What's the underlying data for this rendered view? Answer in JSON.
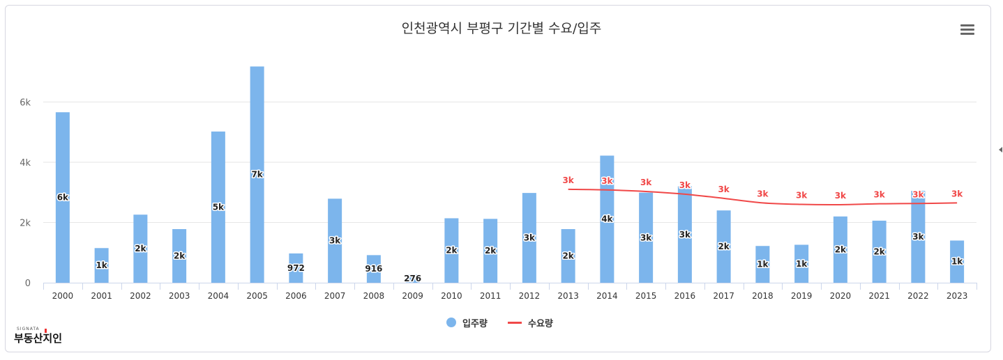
{
  "title": "인천광역시 부평구 기간별 수요/입주",
  "menu_icon": "hamburger-menu-icon",
  "logo": {
    "small_text": "SIGNATA",
    "text": "부동산지인",
    "icon": "budongsan-jiin-logo"
  },
  "legend": [
    {
      "label": "입주량",
      "color": "#7cb5ec",
      "shape": "circle"
    },
    {
      "label": "수요량",
      "color": "#f04848",
      "shape": "line"
    }
  ],
  "chart_data": {
    "type": "bar",
    "title": "인천광역시 부평구 기간별 수요/입주",
    "categories": [
      "2000",
      "2001",
      "2002",
      "2003",
      "2004",
      "2005",
      "2006",
      "2007",
      "2008",
      "2009",
      "2010",
      "2011",
      "2012",
      "2013",
      "2014",
      "2015",
      "2016",
      "2017",
      "2018",
      "2019",
      "2020",
      "2021",
      "2022",
      "2023"
    ],
    "y_ticks": [
      {
        "value": 0,
        "label": "0"
      },
      {
        "value": 2000,
        "label": "2k"
      },
      {
        "value": 4000,
        "label": "4k"
      },
      {
        "value": 6000,
        "label": "6k"
      }
    ],
    "ylim": [
      0,
      7500
    ],
    "grid": true,
    "legend_position": "bottom-center",
    "series": [
      {
        "name": "입주량",
        "type": "bar",
        "color": "#7cb5ec",
        "values": [
          5660,
          1150,
          2260,
          1780,
          5020,
          7180,
          972,
          2790,
          916,
          276,
          2140,
          2120,
          2980,
          1780,
          4220,
          2990,
          3200,
          2400,
          1220,
          1260,
          2200,
          2060,
          3050,
          1400
        ],
        "labels": [
          "6k",
          "1k",
          "2k",
          "2k",
          "5k",
          "7k",
          "972",
          "3k",
          "916",
          "276",
          "2k",
          "2k",
          "3k",
          "2k",
          "4k",
          "3k",
          "3k",
          "2k",
          "1k",
          "1k",
          "2k",
          "2k",
          "3k",
          "1k"
        ]
      },
      {
        "name": "수요량",
        "type": "line",
        "color": "#f04848",
        "values": [
          null,
          null,
          null,
          null,
          null,
          null,
          null,
          null,
          null,
          null,
          null,
          null,
          null,
          3100,
          3080,
          3030,
          2940,
          2800,
          2650,
          2600,
          2590,
          2620,
          2630,
          2650
        ],
        "labels": [
          "",
          "",
          "",
          "",
          "",
          "",
          "",
          "",
          "",
          "",
          "",
          "",
          "",
          "3k",
          "3k",
          "3k",
          "3k",
          "3k",
          "3k",
          "3k",
          "3k",
          "3k",
          "3k",
          "3k"
        ]
      }
    ]
  }
}
